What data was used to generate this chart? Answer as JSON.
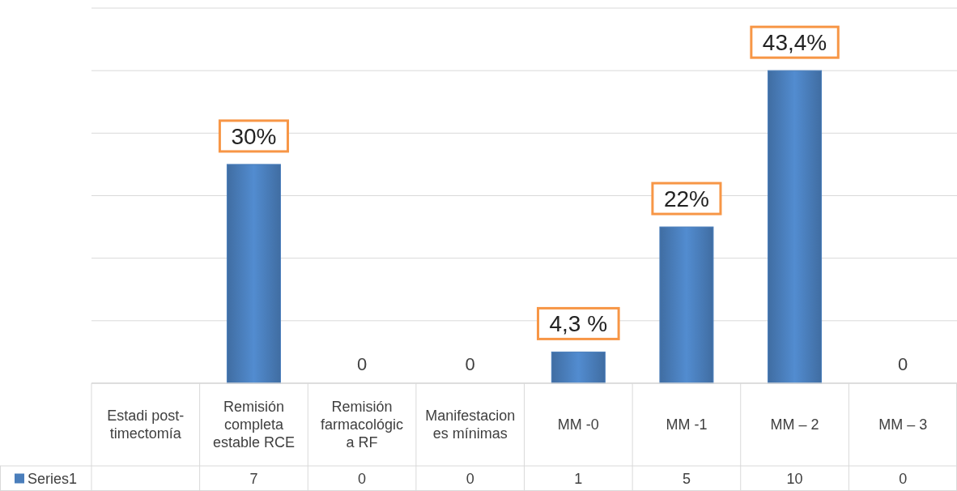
{
  "chart_data": {
    "type": "bar",
    "categories": [
      "Estadi post-timectomía",
      "Remisión completa estable RCE",
      "Remisión farmacológica RF",
      "Manifestaciones mínimas",
      "MM -0",
      "MM -1",
      "MM – 2",
      "MM – 3"
    ],
    "series": [
      {
        "name": "Series1",
        "color": "#4a7ebb",
        "values": [
          null,
          7,
          0,
          0,
          1,
          5,
          10,
          0
        ],
        "value_labels": [
          null,
          "7",
          "0",
          "0",
          "1",
          "5",
          "10",
          "0"
        ]
      }
    ],
    "tick_labels": "x",
    "grid": "y",
    "legend": "bottom",
    "annotations": [
      {
        "text": "30%",
        "x": "Remisión completa estable RCE",
        "y": 7
      },
      {
        "text": "0",
        "x": "Remisión farmacológica RF",
        "y": 0
      },
      {
        "text": "0",
        "x": "Manifestaciones mínimas",
        "y": 0
      },
      {
        "text": "4,3 %",
        "x": "MM -0",
        "y": 1
      },
      {
        "text": "22%",
        "x": "MM -1",
        "y": 5
      },
      {
        "text": "43,4%",
        "x": "MM – 2",
        "y": 10
      },
      {
        "text": "0",
        "x": "MM – 3",
        "y": 0
      }
    ]
  }
}
